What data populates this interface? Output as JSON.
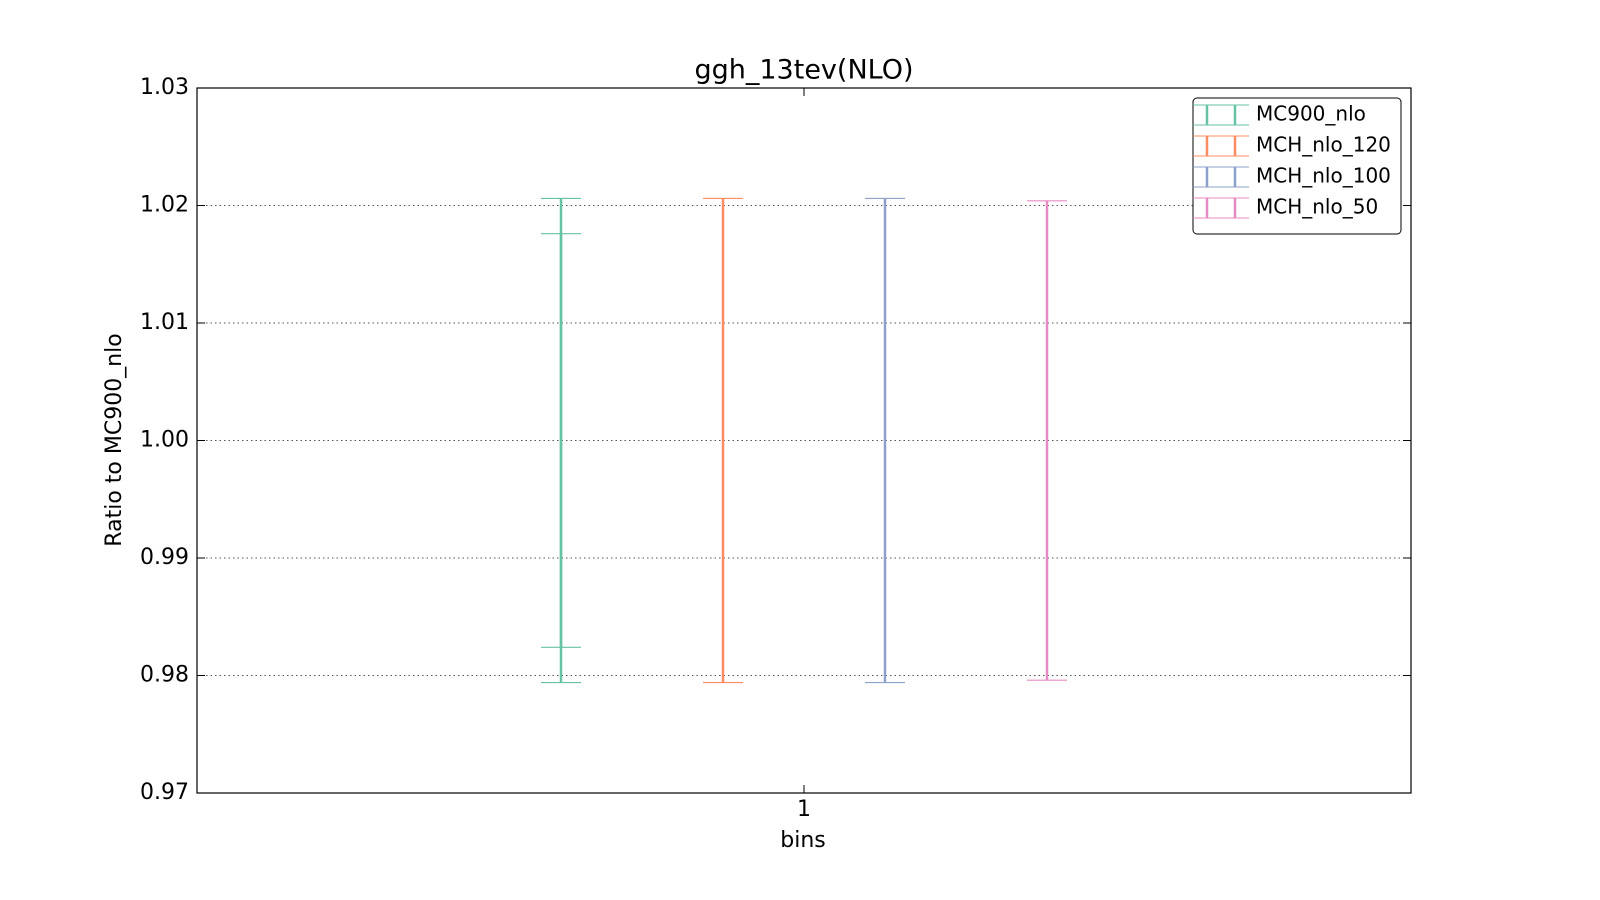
{
  "chart_data": {
    "type": "errorbar",
    "title": "ggh_13tev(NLO)",
    "x_label": "bins",
    "y_label": "Ratio to MC900_nlo",
    "categories": [
      "1"
    ],
    "series": [
      {
        "name": "MC900_nlo",
        "color": "#66c2a5",
        "values": [
          1.0
        ],
        "errors": [
          0.0206
        ],
        "inner_errors": [
          0.0176
        ]
      },
      {
        "name": "MCH_nlo_120",
        "color": "#fc8d62",
        "values": [
          1.0
        ],
        "errors": [
          0.0206
        ]
      },
      {
        "name": "MCH_nlo_100",
        "color": "#8da0cb",
        "values": [
          1.0
        ],
        "errors": [
          0.0206
        ]
      },
      {
        "name": "MCH_nlo_50",
        "color": "#e78ac3",
        "values": [
          1.0
        ],
        "errors": [
          0.0204
        ]
      }
    ],
    "ylim": [
      0.97,
      1.03
    ],
    "yticks": [
      {
        "value": 0.97,
        "label": "0.97"
      },
      {
        "value": 0.98,
        "label": "0.98"
      },
      {
        "value": 0.99,
        "label": "0.99"
      },
      {
        "value": 1.0,
        "label": "1.00"
      },
      {
        "value": 1.01,
        "label": "1.01"
      },
      {
        "value": 1.02,
        "label": "1.02"
      },
      {
        "value": 1.03,
        "label": "1.03"
      }
    ],
    "grid": true,
    "legend": "upper right"
  }
}
